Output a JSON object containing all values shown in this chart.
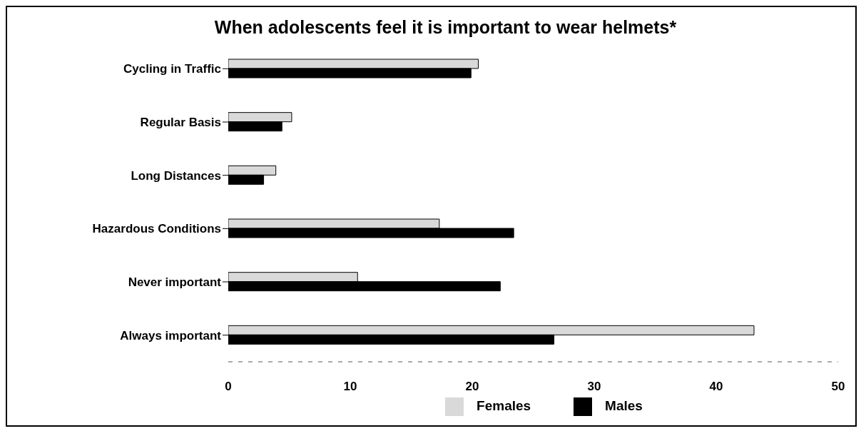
{
  "chart_data": {
    "type": "bar",
    "orientation": "horizontal",
    "title": "When adolescents feel it is important to wear helmets*",
    "categories": [
      "Cycling in Traffic",
      "Regular Basis",
      "Long Distances",
      "Hazardous Conditions",
      "Never important",
      "Always important"
    ],
    "series": [
      {
        "name": "Females",
        "color": "#d9d9d9",
        "values": [
          20.5,
          5.2,
          3.9,
          17.3,
          10.6,
          43.1
        ]
      },
      {
        "name": "Males",
        "color": "#000000",
        "values": [
          19.9,
          4.4,
          2.9,
          23.4,
          22.3,
          26.7
        ]
      }
    ],
    "xlim": [
      0,
      50
    ],
    "xticks": [
      0,
      10,
      20,
      30,
      40,
      50
    ],
    "grid": false,
    "legend": "bottom"
  }
}
